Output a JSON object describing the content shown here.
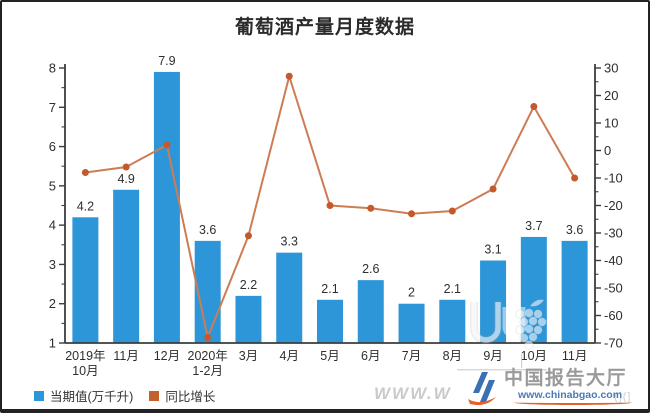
{
  "title": "葡萄酒产量月度数据",
  "chart_data": {
    "type": "bar",
    "subtype": "bar+line combo, dual y-axis",
    "title": "葡萄酒产量月度数据",
    "categories": [
      "2019年\n10月",
      "11月",
      "12月",
      "2020年\n1-2月",
      "3月",
      "4月",
      "5月",
      "6月",
      "7月",
      "8月",
      "9月",
      "10月",
      "11月"
    ],
    "series": [
      {
        "name": "当期值(万千升)",
        "type": "bar",
        "axis": "left",
        "color": "#2D96D8",
        "values": [
          4.2,
          4.9,
          7.9,
          3.6,
          2.2,
          3.3,
          2.1,
          2.6,
          2,
          2.1,
          3.1,
          3.7,
          3.6
        ]
      },
      {
        "name": "同比增长",
        "type": "line",
        "axis": "right",
        "color": "#CD7C54",
        "marker_color": "#C5592C",
        "values": [
          -8,
          -6,
          2,
          -68,
          -31,
          27,
          -20,
          -21,
          -23,
          -22,
          -14,
          16,
          -10
        ]
      }
    ],
    "left_axis": {
      "min": 1,
      "max": 8,
      "tick_step": 1,
      "minor_step": 0.5,
      "ticks": [
        1,
        2,
        3,
        4,
        5,
        6,
        7,
        8
      ]
    },
    "right_axis": {
      "min": -70,
      "max": 30,
      "tick_step": 10,
      "minor_step": 5,
      "ticks": [
        -70,
        -60,
        -50,
        -40,
        -30,
        -20,
        -10,
        0,
        10,
        20,
        30
      ]
    },
    "grid": false,
    "legend_position": "bottom-left",
    "axis_color": "#3c3c3c",
    "text_color": "#2f2f2f"
  },
  "legend": {
    "items": [
      {
        "label": "当期值(万千升)",
        "color": "#2D96D8"
      },
      {
        "label": "同比增长",
        "color": "#C2612E"
      }
    ]
  },
  "branding": {
    "name": "中国报告大厅",
    "url": "www.chinabgao.com"
  },
  "watermarks": {
    "bottom_text": "WWW.W",
    "right_text": "(](]"
  }
}
